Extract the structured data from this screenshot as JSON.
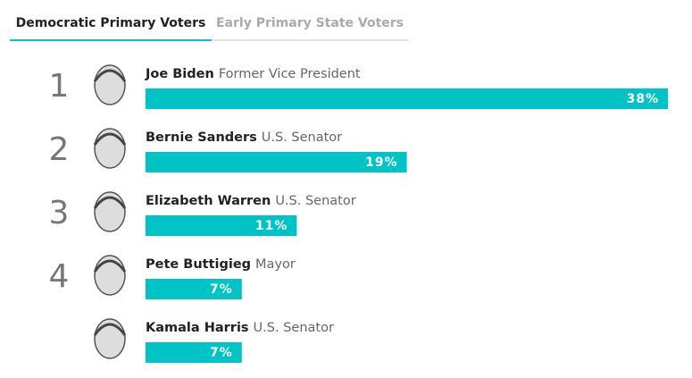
{
  "tabs": [
    "Democratic Primary Voters",
    "Early Primary State Voters"
  ],
  "chart_data": {
    "type": "bar",
    "categories": [
      "Joe Biden",
      "Bernie Sanders",
      "Elizabeth Warren",
      "Pete Buttigieg",
      "Kamala Harris"
    ],
    "descriptions": [
      "Former Vice President",
      "U.S. Senator",
      "U.S. Senator",
      "Mayor",
      "U.S. Senator"
    ],
    "ranks": [
      "1",
      "2",
      "3",
      "4",
      null
    ],
    "values": [
      38,
      19,
      11,
      7,
      7
    ],
    "value_labels": [
      "38%",
      "19%",
      "11%",
      "7%",
      "7%"
    ],
    "color": "#00c3c6"
  }
}
